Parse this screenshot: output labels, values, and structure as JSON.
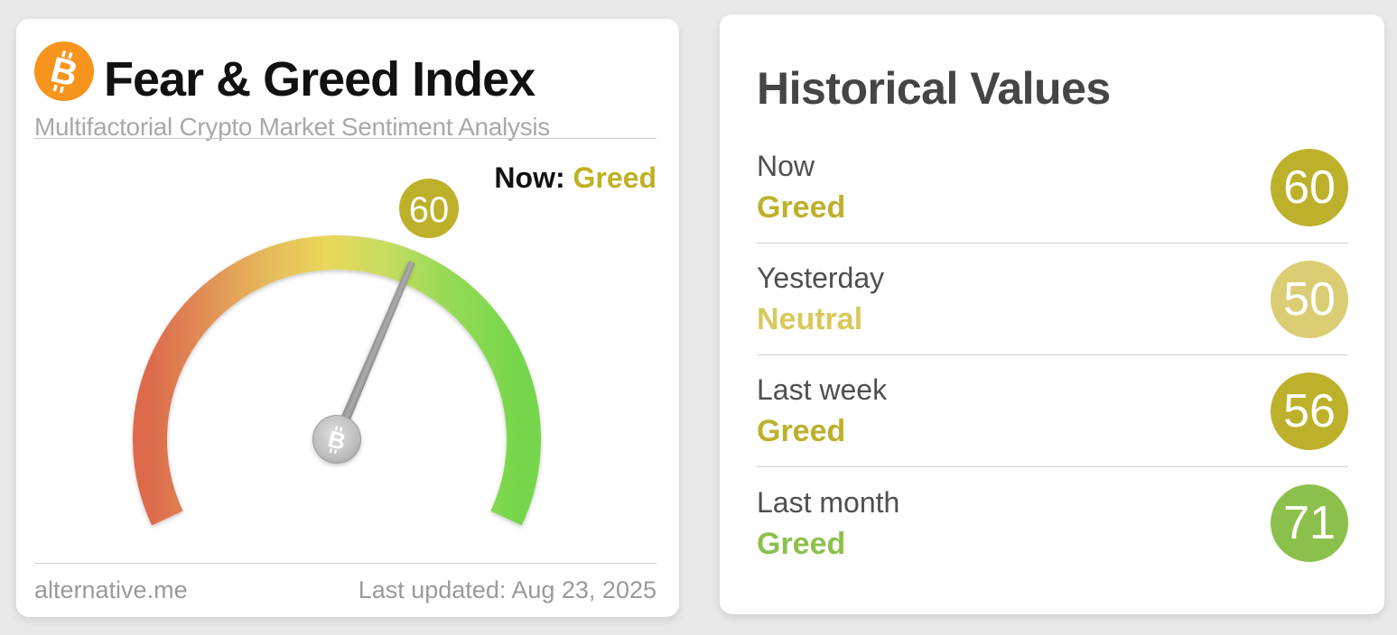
{
  "gauge_card": {
    "title": "Fear & Greed Index",
    "subtitle": "Multifactorial Crypto Market Sentiment Analysis",
    "icon": "bitcoin-icon",
    "icon_glyph": "B",
    "icon_color": "#f7941e",
    "now_label": "Now: ",
    "now_classification": "Greed",
    "now_color": "#c0b122",
    "gauge": {
      "value": 60,
      "min": 0,
      "max": 100,
      "badge_value": "60",
      "badge_color": "#bdb12b",
      "needle_color": "#9a9a9a",
      "arc_colors": [
        "#dc6a4c",
        "#e18f57",
        "#e6b95b",
        "#e9d75a",
        "#c8dc62",
        "#97da57",
        "#74d64b"
      ]
    },
    "footer": {
      "source": "alternative.me",
      "last_updated": "Last updated: Aug 23, 2025"
    }
  },
  "history_card": {
    "title": "Historical Values",
    "rows": [
      {
        "label": "Now",
        "classification": "Greed",
        "value": "60",
        "text_color": "#bdb12b",
        "badge_color": "#bdb12b"
      },
      {
        "label": "Yesterday",
        "classification": "Neutral",
        "value": "50",
        "text_color": "#d8c95b",
        "badge_color": "#dbcd74"
      },
      {
        "label": "Last week",
        "classification": "Greed",
        "value": "56",
        "text_color": "#bdb12b",
        "badge_color": "#bdb12b"
      },
      {
        "label": "Last month",
        "classification": "Greed",
        "value": "71",
        "text_color": "#8cc04c",
        "badge_color": "#8cc04c"
      }
    ]
  },
  "chart_data": {
    "type": "gauge",
    "title": "Fear & Greed Index",
    "subtitle": "Multifactorial Crypto Market Sentiment Analysis",
    "value": 60,
    "classification": "Greed",
    "range": [
      0,
      100
    ],
    "color_scale": "red (fear, low) to green (greed, high)",
    "last_updated": "Aug 23, 2025",
    "historical": [
      {
        "period": "Now",
        "value": 60,
        "classification": "Greed"
      },
      {
        "period": "Yesterday",
        "value": 50,
        "classification": "Neutral"
      },
      {
        "period": "Last week",
        "value": 56,
        "classification": "Greed"
      },
      {
        "period": "Last month",
        "value": 71,
        "classification": "Greed"
      }
    ]
  }
}
